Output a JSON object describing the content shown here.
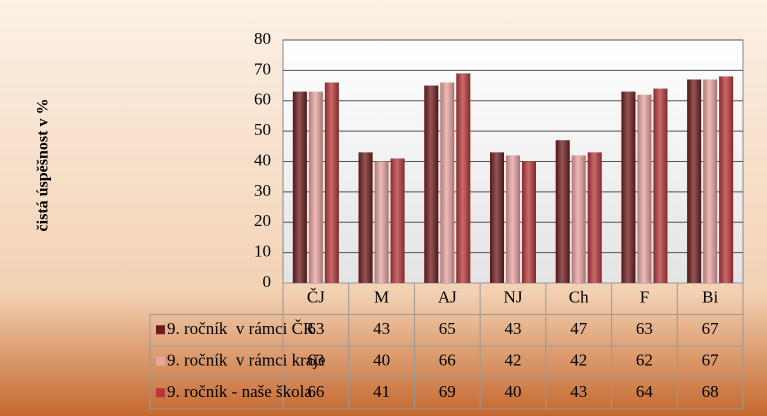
{
  "chart_data": {
    "type": "bar",
    "y_label": "čistá úspěšnost v %",
    "categories": [
      "ČJ",
      "M",
      "AJ",
      "NJ",
      "Ch",
      "F",
      "Bi"
    ],
    "series": [
      {
        "name": "9. ročník  v rámci ČR",
        "color": "#6e1c1c",
        "values": [
          63,
          43,
          65,
          43,
          47,
          63,
          67
        ]
      },
      {
        "name": "9. ročník  v rámci kraje",
        "color": "#e9a3a0",
        "values": [
          63,
          40,
          66,
          42,
          42,
          62,
          67
        ]
      },
      {
        "name": "9. ročník - naše škola",
        "color": "#b5383a",
        "values": [
          66,
          41,
          69,
          40,
          43,
          64,
          68
        ]
      }
    ],
    "ylim": [
      0,
      80
    ],
    "yticks": [
      0,
      10,
      20,
      30,
      40,
      50,
      60,
      70,
      80
    ],
    "grid": true
  }
}
